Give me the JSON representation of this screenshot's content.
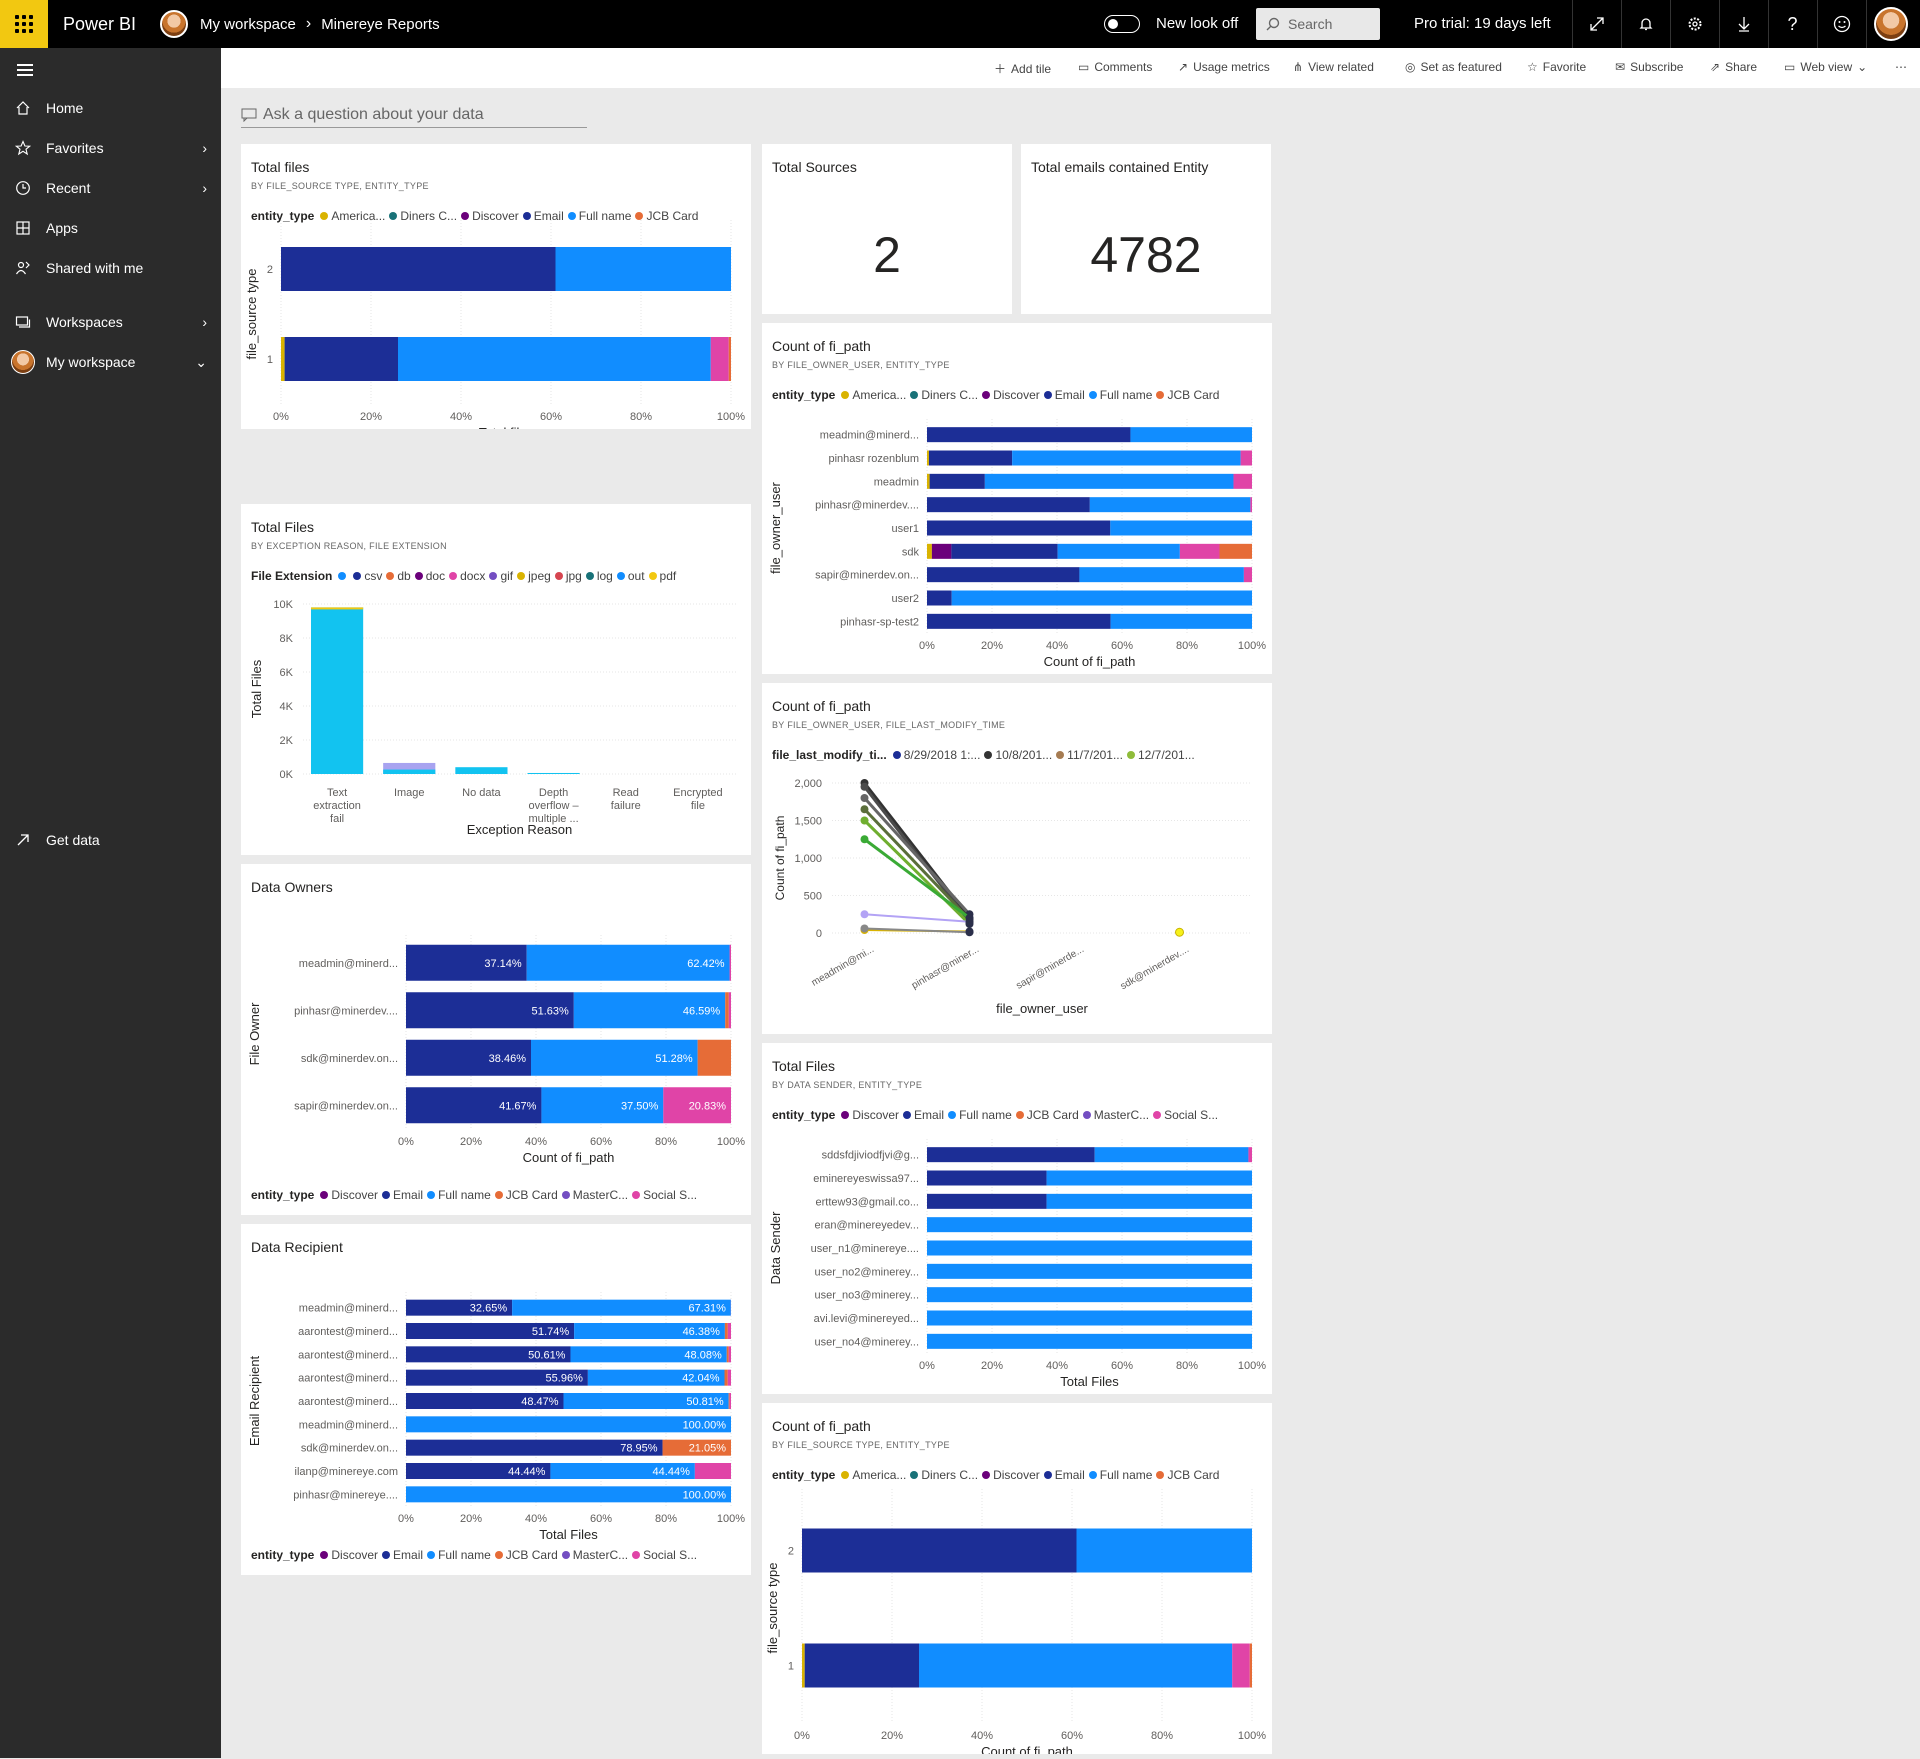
{
  "topbar": {
    "brand": "Power BI",
    "workspace": "My workspace",
    "report": "Minereye Reports",
    "new_look": "New look off",
    "search_placeholder": "Search",
    "trial": "Pro trial: 19 days left"
  },
  "colors": {
    "yellow": "#f2c811",
    "email": "#1c2e96",
    "fullname": "#118dff",
    "jcb": "#e66c37",
    "social": "#e044a7",
    "discover": "#6b007b",
    "diners": "#197278",
    "america": "#d9b300",
    "masterc": "#744ec2"
  },
  "sidebar": {
    "items": [
      {
        "label": "Home",
        "icon": "home-icon"
      },
      {
        "label": "Favorites",
        "icon": "star-icon"
      },
      {
        "label": "Recent",
        "icon": "clock-icon"
      },
      {
        "label": "Apps",
        "icon": "apps-icon"
      },
      {
        "label": "Shared with me",
        "icon": "shared-icon"
      },
      {
        "label": "Workspaces",
        "icon": "workspaces-icon"
      },
      {
        "label": "My workspace",
        "icon": "avatar"
      }
    ],
    "get_data": "Get data"
  },
  "commands": [
    "Add tile",
    "Comments",
    "Usage metrics",
    "View related",
    "Set as featured",
    "Favorite",
    "Subscribe",
    "Share",
    "Web view"
  ],
  "qa_placeholder": "Ask a question about your data",
  "tiles": {
    "total_sources": {
      "title": "Total Sources",
      "value": "2"
    },
    "total_emails": {
      "title": "Total emails contained Entity",
      "value": "4782"
    }
  },
  "charts": [
    {
      "id": "total-files-source",
      "title": "Total files",
      "subtitle": "BY FILE_SOURCE TYPE, ENTITY_TYPE",
      "legend_title": "entity_type",
      "legend": [
        [
          "America...",
          "#d9b300"
        ],
        [
          "Diners C...",
          "#197278"
        ],
        [
          "Discover",
          "#6b007b"
        ],
        [
          "Email",
          "#1c2e96"
        ],
        [
          "Full name",
          "#118dff"
        ],
        [
          "JCB Card",
          "#e66c37"
        ]
      ],
      "ylabel": "file_source type",
      "xlabel": "Total files",
      "categories": [
        "2",
        "1"
      ],
      "series": [
        [
          "#d9b300",
          "#1c2e96",
          "#118dff",
          "#e044a7",
          "#e66c37"
        ]
      ],
      "rows": [
        [
          0,
          61,
          39,
          0,
          0
        ],
        [
          0.8,
          25.2,
          69.5,
          4,
          0.5
        ]
      ],
      "labels": []
    },
    {
      "id": "data-owners",
      "title": "Data Owners",
      "subtitle": "",
      "legend_title": "entity_type",
      "legend": [
        [
          "Discover",
          "#6b007b"
        ],
        [
          "Email",
          "#1c2e96"
        ],
        [
          "Full name",
          "#118dff"
        ],
        [
          "JCB Card",
          "#e66c37"
        ],
        [
          "MasterC...",
          "#744ec2"
        ],
        [
          "Social S...",
          "#e044a7"
        ]
      ],
      "ylabel": "File Owner",
      "xlabel": "Count of fi_path",
      "categories": [
        "meadmin@minerd...",
        "pinhasr@minerdev....",
        "sdk@minerdev.on...",
        "sapir@minerdev.on..."
      ],
      "series": [
        [
          "#1c2e96",
          "#118dff",
          "#e66c37",
          "#e044a7"
        ]
      ],
      "rows": [
        [
          37.14,
          62.42,
          0,
          0.44
        ],
        [
          51.63,
          46.59,
          1.1,
          0.68
        ],
        [
          38.46,
          51.28,
          10.26,
          0
        ],
        [
          41.67,
          37.5,
          0,
          20.83
        ]
      ],
      "labels": [
        [
          "37.14%",
          "62.42%",
          "",
          ""
        ],
        [
          "51.63%",
          "46.59%",
          "",
          ""
        ],
        [
          "38.46%",
          "51.28%",
          "",
          ""
        ],
        [
          "41.67%",
          "37.50%",
          "",
          "20.83%"
        ]
      ]
    },
    {
      "id": "data-recipient",
      "title": "Data Recipient",
      "subtitle": "",
      "legend_title": "entity_type",
      "legend": [
        [
          "Discover",
          "#6b007b"
        ],
        [
          "Email",
          "#1c2e96"
        ],
        [
          "Full name",
          "#118dff"
        ],
        [
          "JCB Card",
          "#e66c37"
        ],
        [
          "MasterC...",
          "#744ec2"
        ],
        [
          "Social S...",
          "#e044a7"
        ]
      ],
      "ylabel": "Email Recipient",
      "xlabel": "Total Files",
      "categories": [
        "meadmin@minerd...",
        "aarontest@minerd...",
        "aarontest@minerd...",
        "aarontest@minerd...",
        "aarontest@minerd...",
        "meadmin@minerd...",
        "sdk@minerdev.on...",
        "ilanp@minereye.com",
        "pinhasr@minereye...."
      ],
      "series": [
        [
          "#1c2e96",
          "#118dff",
          "#e66c37",
          "#e044a7"
        ]
      ],
      "rows": [
        [
          32.65,
          67.31,
          0,
          0.04
        ],
        [
          51.74,
          46.38,
          0.9,
          0.98
        ],
        [
          50.61,
          48.08,
          0.6,
          0.71
        ],
        [
          55.96,
          42.04,
          1,
          1
        ],
        [
          48.47,
          50.81,
          0.3,
          0.42
        ],
        [
          0,
          100,
          0,
          0
        ],
        [
          78.95,
          0,
          21.05,
          0
        ],
        [
          44.44,
          44.44,
          0,
          11.12
        ],
        [
          0,
          100,
          0,
          0
        ]
      ],
      "labels": [
        [
          "32.65%",
          "67.31%",
          "",
          ""
        ],
        [
          "51.74%",
          "46.38%",
          "",
          ""
        ],
        [
          "50.61%",
          "48.08%",
          "",
          ""
        ],
        [
          "55.96%",
          "42.04%",
          "",
          ""
        ],
        [
          "48.47%",
          "50.81%",
          "",
          ""
        ],
        [
          "",
          "100.00%",
          "",
          ""
        ],
        [
          "78.95%",
          "",
          "21.05%",
          ""
        ],
        [
          "44.44%",
          "44.44%",
          "",
          ""
        ],
        [
          "",
          "100.00%",
          "",
          ""
        ]
      ]
    },
    {
      "id": "count-fi-path-owner",
      "title": "Count of fi_path",
      "subtitle": "BY FILE_OWNER_USER, ENTITY_TYPE",
      "legend_title": "entity_type",
      "legend": [
        [
          "America...",
          "#d9b300"
        ],
        [
          "Diners C...",
          "#197278"
        ],
        [
          "Discover",
          "#6b007b"
        ],
        [
          "Email",
          "#1c2e96"
        ],
        [
          "Full name",
          "#118dff"
        ],
        [
          "JCB Card",
          "#e66c37"
        ]
      ],
      "ylabel": "file_owner_user",
      "xlabel": "Count of fi_path",
      "categories": [
        "meadmin@minerd...",
        "pinhasr rozenblum",
        "meadmin",
        "pinhasr@minerdev....",
        "user1",
        "sdk",
        "sapir@minerdev.on...",
        "user2",
        "pinhasr-sp-test2"
      ],
      "series": [
        [
          "#d9b300",
          "#6b007b",
          "#1c2e96",
          "#118dff",
          "#e044a7",
          "#e66c37"
        ]
      ],
      "rows": [
        [
          0,
          0,
          62.6,
          37.4,
          0,
          0
        ],
        [
          0.6,
          0,
          25.6,
          70.3,
          3.5,
          0
        ],
        [
          0.8,
          0,
          17,
          76.5,
          5.7,
          0
        ],
        [
          0,
          0,
          50.1,
          49.4,
          0.5,
          0
        ],
        [
          0,
          0,
          56.4,
          43.6,
          0,
          0
        ],
        [
          1.5,
          6,
          32.7,
          37.6,
          12.2,
          10
        ],
        [
          0,
          0,
          46.9,
          50.6,
          2.5,
          0
        ],
        [
          0,
          0,
          7.6,
          92.4,
          0,
          0
        ],
        [
          0,
          0,
          56.5,
          43.5,
          0,
          0
        ]
      ],
      "labels": []
    },
    {
      "id": "total-files-sender",
      "title": "Total Files",
      "subtitle": "BY DATA SENDER, ENTITY_TYPE",
      "legend_title": "entity_type",
      "legend": [
        [
          "Discover",
          "#6b007b"
        ],
        [
          "Email",
          "#1c2e96"
        ],
        [
          "Full name",
          "#118dff"
        ],
        [
          "JCB Card",
          "#e66c37"
        ],
        [
          "MasterC...",
          "#744ec2"
        ],
        [
          "Social S...",
          "#e044a7"
        ]
      ],
      "ylabel": "Data Sender",
      "xlabel": "Total Files",
      "categories": [
        "sddsfdjiviodfjvi@g...",
        "eminereyeswissa97...",
        "erttew93@gmail.co...",
        "eran@minereyedev...",
        "user_n1@minereye....",
        "user_no2@minerey...",
        "user_no3@minerey...",
        "avi.levi@minereyed...",
        "user_no4@minerey..."
      ],
      "series": [
        [
          "#1c2e96",
          "#118dff",
          "#e044a7"
        ]
      ],
      "rows": [
        [
          51.6,
          47.3,
          1.1
        ],
        [
          36.8,
          63.2,
          0
        ],
        [
          36.8,
          63.2,
          0
        ],
        [
          0,
          100,
          0
        ],
        [
          0,
          100,
          0
        ],
        [
          0,
          100,
          0
        ],
        [
          0,
          100,
          0
        ],
        [
          0,
          100,
          0
        ],
        [
          0,
          100,
          0
        ]
      ],
      "labels": []
    },
    {
      "id": "count-fi-path-source",
      "title": "Count of fi_path",
      "subtitle": "BY FILE_SOURCE TYPE, ENTITY_TYPE",
      "legend_title": "entity_type",
      "legend": [
        [
          "America...",
          "#d9b300"
        ],
        [
          "Diners C...",
          "#197278"
        ],
        [
          "Discover",
          "#6b007b"
        ],
        [
          "Email",
          "#1c2e96"
        ],
        [
          "Full name",
          "#118dff"
        ],
        [
          "JCB Card",
          "#e66c37"
        ]
      ],
      "ylabel": "file_source type",
      "xlabel": "Count of fi_path",
      "categories": [
        "2",
        "1"
      ],
      "series": [
        [
          "#d9b300",
          "#1c2e96",
          "#118dff",
          "#e044a7",
          "#e66c37"
        ]
      ],
      "rows": [
        [
          0,
          61,
          39,
          0,
          0
        ],
        [
          0.6,
          25.4,
          69.6,
          3.9,
          0.5
        ]
      ],
      "labels": []
    }
  ],
  "ticks_pct": [
    "0%",
    "20%",
    "40%",
    "60%",
    "80%",
    "100%"
  ],
  "exception_chart": {
    "title": "Total Files",
    "subtitle": "BY EXCEPTION REASON, FILE EXTENSION",
    "legend_title": "File Extension",
    "legend": [
      [
        "",
        "#118dff"
      ],
      [
        "csv",
        "#1c2e96"
      ],
      [
        "db",
        "#e66c37"
      ],
      [
        "doc",
        "#6b007b"
      ],
      [
        "docx",
        "#e044a7"
      ],
      [
        "gif",
        "#744ec2"
      ],
      [
        "jpeg",
        "#d9b300"
      ],
      [
        "jpg",
        "#d64550"
      ],
      [
        "log",
        "#197278"
      ],
      [
        "out",
        "#118dff"
      ],
      [
        "pdf",
        "#f2c811"
      ]
    ],
    "ylabel": "Total Files",
    "xlabel": "Exception Reason",
    "yticks": [
      "10K",
      "8K",
      "6K",
      "4K",
      "2K",
      "0K"
    ],
    "categories": [
      [
        "Text",
        "extraction",
        "fail"
      ],
      [
        "Image"
      ],
      [
        "No data"
      ],
      [
        "Depth",
        "overflow –",
        "multiple ..."
      ],
      [
        "Read",
        "failure"
      ],
      [
        "Encrypted",
        "file"
      ]
    ],
    "values": [
      9800,
      650,
      400,
      60,
      0,
      0
    ],
    "ylim": [
      0,
      10000
    ]
  },
  "line_chart": {
    "title": "Count of fi_path",
    "subtitle": "BY FILE_OWNER_USER, FILE_LAST_MODIFY_TIME",
    "legend_title": "file_last_modify_ti...",
    "legend": [
      [
        "8/29/2018 1:...",
        "#1c2e96"
      ],
      [
        "10/8/201...",
        "#333333"
      ],
      [
        "11/7/201...",
        "#a67c52"
      ],
      [
        "12/7/201...",
        "#8fbc3a"
      ]
    ],
    "ylabel": "Count of fi_path",
    "xlabel": "file_owner_user",
    "yticks": [
      "2,000",
      "1,500",
      "1,000",
      "500",
      "0"
    ],
    "categories": [
      "meadmin@mi...",
      "pinhasr@miner...",
      "sapir@minerde...",
      "sdk@minerdev...."
    ],
    "ylim": [
      0,
      2000
    ]
  }
}
